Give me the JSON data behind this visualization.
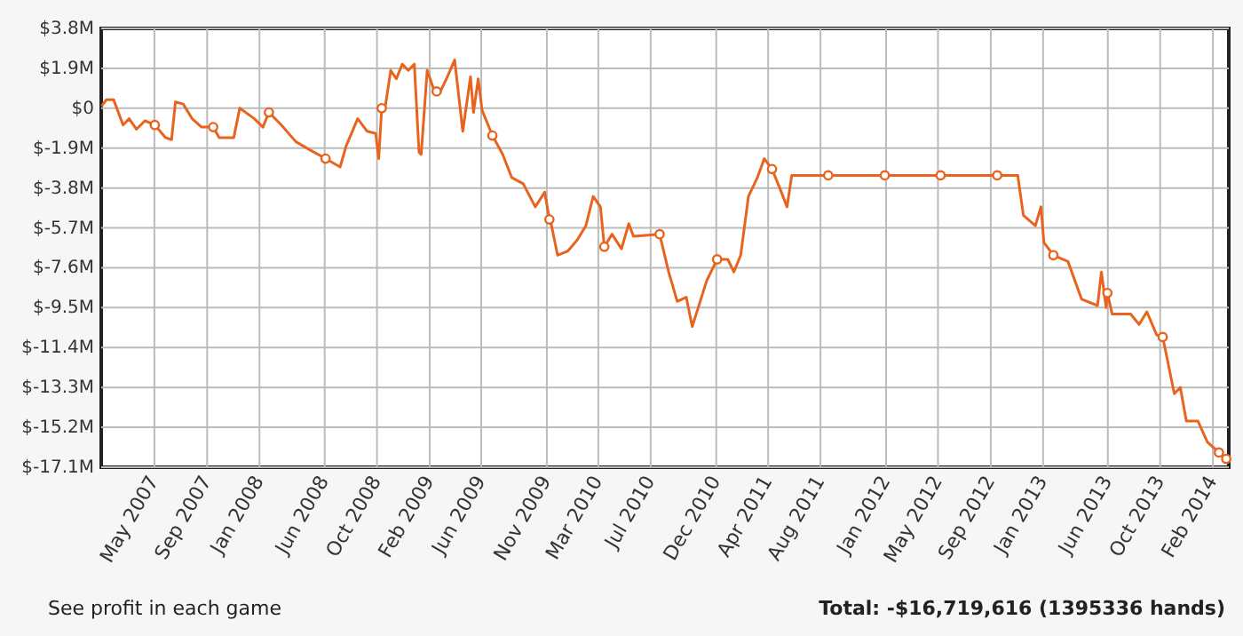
{
  "chart_data": {
    "type": "line",
    "xlim": [
      "2007-01-11",
      "2014-03-24"
    ],
    "ylim": [
      -17.1,
      3.8
    ],
    "xticks": [
      {
        "value": "2007-05-15",
        "label": "May 2007"
      },
      {
        "value": "2007-09-15",
        "label": "Sep 2007"
      },
      {
        "value": "2008-01-15",
        "label": "Jan 2008"
      },
      {
        "value": "2008-06-15",
        "label": "Jun 2008"
      },
      {
        "value": "2008-10-15",
        "label": "Oct 2008"
      },
      {
        "value": "2009-02-15",
        "label": "Feb 2009"
      },
      {
        "value": "2009-06-15",
        "label": "Jun 2009"
      },
      {
        "value": "2009-11-15",
        "label": "Nov 2009"
      },
      {
        "value": "2010-03-15",
        "label": "Mar 2010"
      },
      {
        "value": "2010-07-15",
        "label": "Jul 2010"
      },
      {
        "value": "2010-12-15",
        "label": "Dec 2010"
      },
      {
        "value": "2011-04-15",
        "label": "Apr 2011"
      },
      {
        "value": "2011-08-15",
        "label": "Aug 2011"
      },
      {
        "value": "2012-01-15",
        "label": "Jan 2012"
      },
      {
        "value": "2012-05-15",
        "label": "May 2012"
      },
      {
        "value": "2012-09-15",
        "label": "Sep 2012"
      },
      {
        "value": "2013-01-15",
        "label": "Jan 2013"
      },
      {
        "value": "2013-06-15",
        "label": "Jun 2013"
      },
      {
        "value": "2013-10-15",
        "label": "Oct 2013"
      },
      {
        "value": "2014-02-15",
        "label": "Feb 2014"
      }
    ],
    "yticks": [
      {
        "value": 3.8,
        "label": "$3.8M"
      },
      {
        "value": 1.9,
        "label": "$1.9M"
      },
      {
        "value": 0,
        "label": "$0"
      },
      {
        "value": -1.9,
        "label": "$-1.9M"
      },
      {
        "value": -3.8,
        "label": "$-3.8M"
      },
      {
        "value": -5.7,
        "label": "$-5.7M"
      },
      {
        "value": -7.6,
        "label": "$-7.6M"
      },
      {
        "value": -9.5,
        "label": "$-9.5M"
      },
      {
        "value": -11.4,
        "label": "$-11.4M"
      },
      {
        "value": -13.3,
        "label": "$-13.3M"
      },
      {
        "value": -15.2,
        "label": "$-15.2M"
      },
      {
        "value": -17.1,
        "label": "$-17.1M"
      }
    ],
    "grid": true,
    "annotations": [
      "See profit in each game",
      "Total: -$16,719,616 (1395336 hands)"
    ],
    "series": [
      {
        "color": "#e8641e",
        "x": [
          "2007-01-12",
          "2007-01-23",
          "2007-02-09",
          "2007-03-03",
          "2007-03-17",
          "2007-04-03",
          "2007-04-23",
          "2007-05-16",
          "2007-06-10",
          "2007-06-24",
          "2007-07-03",
          "2007-07-21",
          "2007-08-11",
          "2007-09-02",
          "2007-09-29",
          "2007-10-13",
          "2007-11-16",
          "2007-11-30",
          "2008-01-03",
          "2008-01-23",
          "2008-02-06",
          "2008-03-06",
          "2008-04-09",
          "2008-05-13",
          "2008-06-17",
          "2008-07-21",
          "2008-08-04",
          "2008-08-31",
          "2008-09-22",
          "2008-10-12",
          "2008-10-19",
          "2008-10-26",
          "2008-11-02",
          "2008-11-16",
          "2008-11-29",
          "2008-12-13",
          "2008-12-27",
          "2009-01-10",
          "2009-01-21",
          "2009-01-26",
          "2009-02-09",
          "2009-02-26",
          "2009-03-03",
          "2009-03-12",
          "2009-03-26",
          "2009-04-14",
          "2009-05-03",
          "2009-05-21",
          "2009-05-28",
          "2009-06-08",
          "2009-06-17",
          "2009-07-11",
          "2009-08-04",
          "2009-08-25",
          "2009-09-21",
          "2009-10-19",
          "2009-11-10",
          "2009-11-21",
          "2009-11-23",
          "2009-12-10",
          "2010-01-03",
          "2010-01-24",
          "2010-02-14",
          "2010-03-03",
          "2010-03-20",
          "2010-03-29",
          "2010-04-16",
          "2010-05-08",
          "2010-05-25",
          "2010-06-05",
          "2010-08-05",
          "2010-08-26",
          "2010-09-15",
          "2010-10-06",
          "2010-10-20",
          "2010-11-23",
          "2010-12-17",
          "2011-01-11",
          "2011-01-25",
          "2011-02-10",
          "2011-02-28",
          "2011-03-21",
          "2011-04-06",
          "2011-04-24",
          "2011-05-12",
          "2011-05-29",
          "2011-06-09",
          "2011-09-02",
          "2012-01-12",
          "2012-05-21",
          "2012-09-30",
          "2012-11-17",
          "2012-11-30",
          "2012-12-28",
          "2013-01-10",
          "2013-01-17",
          "2013-02-08",
          "2013-03-14",
          "2013-04-15",
          "2013-05-22",
          "2013-05-31",
          "2013-06-11",
          "2013-06-14",
          "2013-06-25",
          "2013-08-07",
          "2013-08-27",
          "2013-09-14",
          "2013-10-07",
          "2013-10-21",
          "2013-11-17",
          "2013-12-01",
          "2013-12-15",
          "2014-01-11",
          "2014-02-02",
          "2014-03-01",
          "2014-03-18"
        ],
        "values": [
          0.1,
          0.4,
          0.4,
          -0.8,
          -0.5,
          -1.0,
          -0.6,
          -0.8,
          -1.4,
          -1.5,
          0.3,
          0.2,
          -0.5,
          -0.9,
          -0.9,
          -1.4,
          -1.4,
          0.0,
          -0.5,
          -0.9,
          -0.2,
          -0.8,
          -1.6,
          -2.0,
          -2.4,
          -2.8,
          -1.8,
          -0.5,
          -1.1,
          -1.2,
          -2.4,
          0.0,
          -0.1,
          1.8,
          1.4,
          2.1,
          1.8,
          2.1,
          -2.1,
          -2.2,
          1.8,
          0.8,
          0.8,
          0.8,
          1.4,
          2.3,
          -1.1,
          1.5,
          -0.2,
          1.4,
          -0.1,
          -1.3,
          -2.2,
          -3.3,
          -3.6,
          -4.7,
          -4.0,
          -5.3,
          -5.3,
          -7.0,
          -6.8,
          -6.3,
          -5.6,
          -4.2,
          -4.7,
          -6.6,
          -6.0,
          -6.7,
          -5.5,
          -6.1,
          -6.0,
          -7.8,
          -9.2,
          -9.0,
          -10.4,
          -8.2,
          -7.2,
          -7.2,
          -7.8,
          -7.0,
          -4.2,
          -3.3,
          -2.4,
          -2.9,
          -3.8,
          -4.7,
          -3.2,
          -3.2,
          -3.2,
          -3.2,
          -3.2,
          -3.2,
          -5.1,
          -5.6,
          -4.7,
          -6.4,
          -7.0,
          -7.3,
          -9.1,
          -9.4,
          -7.8,
          -9.5,
          -8.8,
          -9.8,
          -9.8,
          -10.3,
          -9.7,
          -10.8,
          -10.9,
          -13.6,
          -13.3,
          -14.9,
          -14.9,
          -15.9,
          -16.4,
          -16.7
        ]
      },
      {
        "type": "scatter",
        "color": "#e8641e",
        "marker": "circle",
        "x": [
          "2007-05-16",
          "2007-09-29",
          "2008-02-06",
          "2008-06-17",
          "2008-10-26",
          "2009-03-03",
          "2009-07-11",
          "2009-11-21",
          "2010-03-29",
          "2010-08-05",
          "2010-12-17",
          "2011-04-24",
          "2011-09-02",
          "2012-01-12",
          "2012-05-21",
          "2012-09-30",
          "2013-02-08",
          "2013-06-14",
          "2013-10-21",
          "2014-03-01",
          "2014-03-18"
        ],
        "values": [
          -0.8,
          -0.9,
          -0.2,
          -2.4,
          0.0,
          0.8,
          -1.3,
          -5.3,
          -6.6,
          -6.0,
          -7.2,
          -2.9,
          -3.2,
          -3.2,
          -3.2,
          -3.2,
          -7.0,
          -8.8,
          -10.9,
          -16.4,
          -16.7
        ]
      }
    ]
  }
}
